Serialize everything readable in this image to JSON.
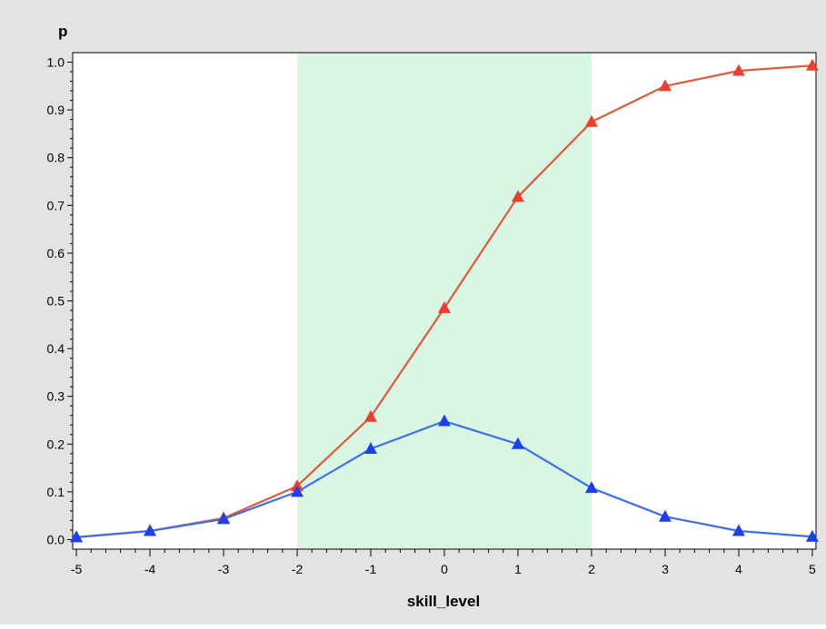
{
  "chart_data": {
    "type": "line",
    "ylabel": "p",
    "xlabel": "skill_level",
    "xlim": [
      -5.05,
      5.05
    ],
    "ylim": [
      -0.02,
      1.02
    ],
    "x_ticks": [
      -5,
      -4,
      -3,
      -2,
      -1,
      0,
      1,
      2,
      3,
      4,
      5
    ],
    "y_ticks": [
      0.0,
      0.1,
      0.2,
      0.3,
      0.4,
      0.5,
      0.6,
      0.7,
      0.8,
      0.9,
      1.0
    ],
    "grid": false,
    "shaded_band": {
      "x_from": -2,
      "x_to": 2,
      "color": "#d9f5e3"
    },
    "x": [
      -5,
      -4,
      -3,
      -2,
      -1,
      0,
      1,
      2,
      3,
      4,
      5
    ],
    "series": [
      {
        "color": "#e8402c",
        "line_color": "#dd5a3c",
        "marker": "triangle",
        "values": [
          0.005,
          0.018,
          0.045,
          0.112,
          0.257,
          0.485,
          0.718,
          0.875,
          0.95,
          0.982,
          0.993
        ]
      },
      {
        "color": "#1f3fe8",
        "line_color": "#3f6ee8",
        "marker": "triangle",
        "values": [
          0.005,
          0.018,
          0.043,
          0.1,
          0.19,
          0.248,
          0.2,
          0.108,
          0.048,
          0.018,
          0.006
        ]
      }
    ]
  },
  "colors": {
    "background": "#e3e3e3",
    "plot_area": "#ffffff",
    "axis": "#000000"
  }
}
